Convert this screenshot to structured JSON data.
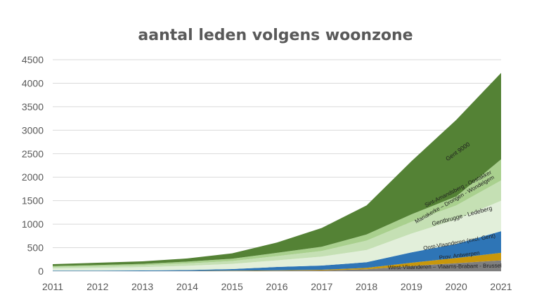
{
  "chart_data": {
    "type": "area",
    "stacked": true,
    "title": "aantal leden volgens woonzone",
    "xlabel": "",
    "ylabel": "",
    "x": [
      "2011",
      "2012",
      "2013",
      "2014",
      "2015",
      "2016",
      "2017",
      "2018",
      "2019",
      "2020",
      "2021"
    ],
    "ylim": [
      0,
      4500
    ],
    "yticks": [
      0,
      500,
      1000,
      1500,
      2000,
      2500,
      3000,
      3500,
      4000,
      4500
    ],
    "grid": true,
    "legend": "none",
    "series": [
      {
        "name": "West-Vlaanderen – Vlaams-Brabant - Brussel",
        "color": "#7f7f7f",
        "values": [
          0,
          0,
          0,
          2,
          5,
          10,
          15,
          40,
          110,
          170,
          230
        ]
      },
      {
        "name": "Prov. Antwerpen",
        "color": "#c9970b",
        "values": [
          0,
          0,
          0,
          2,
          5,
          10,
          15,
          30,
          70,
          110,
          160
        ]
      },
      {
        "name": "Oost-Vlaanderen (excl. Gent)",
        "color": "#2e75b6",
        "values": [
          10,
          10,
          15,
          20,
          35,
          70,
          90,
          120,
          220,
          300,
          460
        ]
      },
      {
        "name": "Gentbrugge - Ledeberg",
        "color": "#e2efda",
        "values": [
          50,
          60,
          70,
          90,
          110,
          140,
          190,
          260,
          400,
          520,
          650
        ]
      },
      {
        "name": "Sint-Amandsberg - Oostakker",
        "color": "#c5e0b4",
        "values": [
          30,
          35,
          40,
          50,
          60,
          90,
          120,
          200,
          250,
          300,
          430
        ]
      },
      {
        "name": "Mariakerke – Drongen - Wondelgem",
        "color": "#a9d08e",
        "values": [
          20,
          25,
          30,
          40,
          50,
          70,
          90,
          130,
          160,
          190,
          450
        ]
      },
      {
        "name": "Gent 9000",
        "color": "#548235",
        "values": [
          40,
          50,
          55,
          66,
          115,
          220,
          400,
          620,
          1130,
          1630,
          1840
        ]
      }
    ]
  }
}
